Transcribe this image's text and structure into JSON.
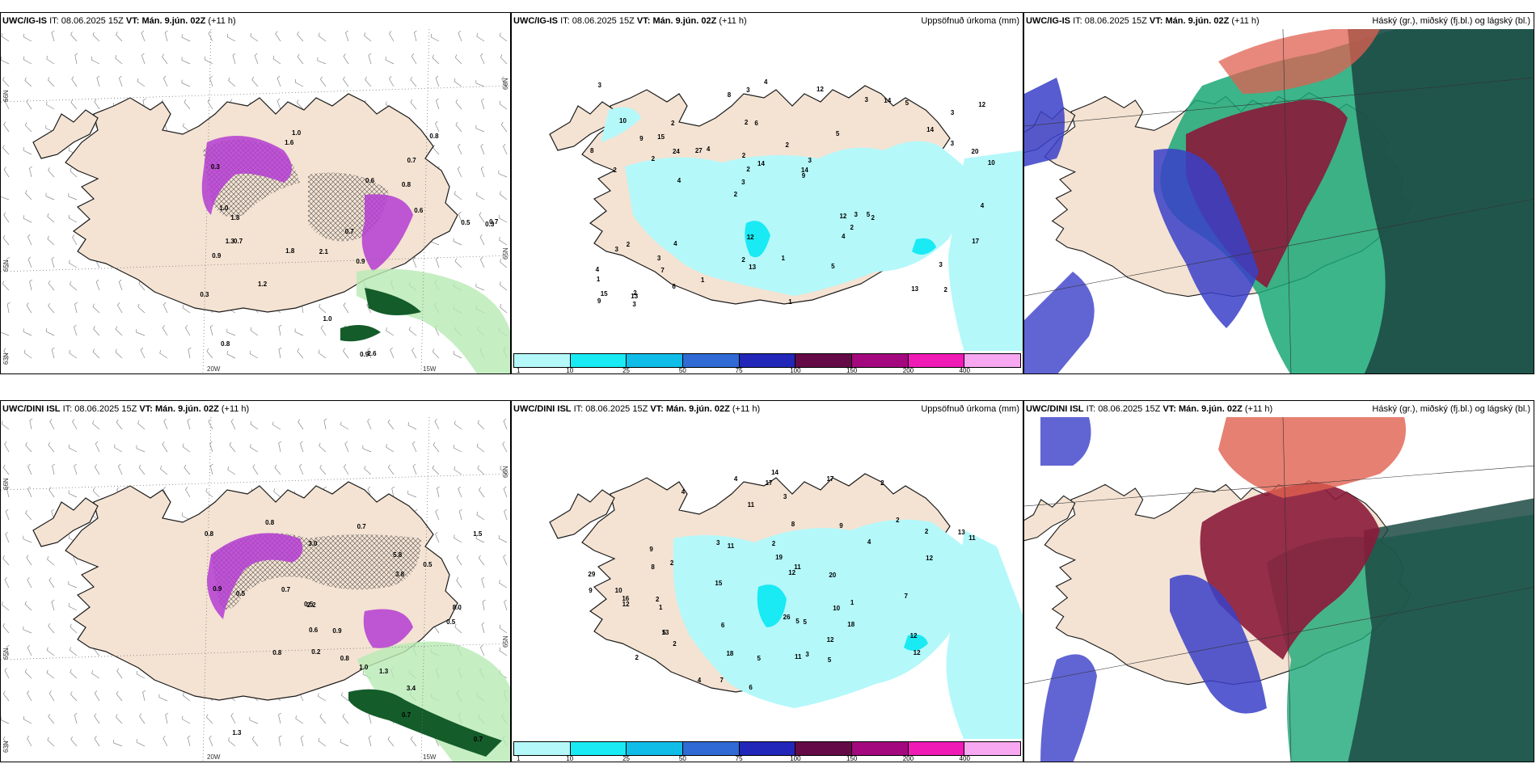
{
  "rows": [
    {
      "model": "UWC/IG-IS",
      "it_label": "IT:",
      "it_value": "08.06.2025 15Z",
      "vt_label": "VT:",
      "vt_value": "Mán. 9.jún. 02Z",
      "lead": "(+11 h)",
      "precip_title": "Uppsöfnuð úrkoma (mm)",
      "cloud_title": "Háský (gr.), miðský (fj.bl.) og lágský (bl.)",
      "wind_labels": [
        "1.0",
        "0.7",
        "0.3",
        "2.1",
        "0.9",
        "0.7",
        "0.3",
        "0.8",
        "0.9",
        "0.6",
        "0.7",
        "0.8",
        "1.6",
        "1.8",
        "0.9",
        "2.6",
        "1.0",
        "0.8",
        "0.6",
        "1.2",
        "1.8",
        "1.3",
        "0.7",
        "0.5",
        "0.3",
        "1.0"
      ],
      "precip_labels": [
        "2",
        "2",
        "3",
        "2",
        "5",
        "2",
        "2",
        "2",
        "2",
        "4",
        "1",
        "7",
        "6",
        "3",
        "2",
        "10",
        "3",
        "10",
        "12",
        "3",
        "3",
        "2",
        "2",
        "2",
        "3",
        "4",
        "13",
        "3",
        "5",
        "1",
        "27",
        "2",
        "4",
        "6",
        "20",
        "14",
        "15",
        "13",
        "9",
        "3",
        "14",
        "12",
        "2",
        "5",
        "3",
        "3",
        "9",
        "1",
        "5",
        "4",
        "4",
        "8",
        "15",
        "14",
        "13",
        "12",
        "8",
        "14",
        "17",
        "12",
        "1",
        "3",
        "24",
        "4",
        "3",
        "9",
        "4",
        "2"
      ]
    },
    {
      "model": "UWC/DINI ISL",
      "it_label": "IT:",
      "it_value": "08.06.2025 15Z",
      "vt_label": "VT:",
      "vt_value": "Mán. 9.jún. 02Z",
      "lead": "(+11 h)",
      "precip_title": "Uppsöfnuð úrkoma (mm)",
      "cloud_title": "Háský (gr.), miðský (fj.bl.) og lágský (bl.)",
      "wind_labels": [
        "0.5",
        "0.9",
        "3.0",
        "0.8",
        "2.2",
        "1.0",
        "0.5",
        "0.2",
        "0.7",
        "0.8",
        "0.5",
        "8.0",
        "1.5",
        "0.9",
        "3.8",
        "0.8",
        "0.6",
        "0.7",
        "1.3",
        "0.5",
        "0.8",
        "0.7",
        "5.8",
        "3.4",
        "1.3",
        "0.7"
      ],
      "precip_labels": [
        "2",
        "2",
        "4",
        "2",
        "5",
        "2",
        "1",
        "5",
        "2",
        "4",
        "10",
        "14",
        "18",
        "12",
        "6",
        "4",
        "12",
        "29",
        "13",
        "7",
        "5",
        "17",
        "11",
        "11",
        "19",
        "18",
        "16",
        "17",
        "8",
        "1",
        "9",
        "2",
        "3",
        "26",
        "12",
        "12",
        "13",
        "20",
        "9",
        "7",
        "11",
        "3",
        "5",
        "2",
        "9",
        "8",
        "10",
        "11",
        "6",
        "12",
        "11",
        "4",
        "2",
        "12",
        "15",
        "5",
        "3"
      ]
    }
  ],
  "lat_labels": [
    "66N",
    "65N",
    "64N",
    "63N"
  ],
  "lon_labels": [
    "20W",
    "15W"
  ],
  "legend": {
    "ticks": [
      "1",
      "10",
      "25",
      "50",
      "75",
      "100",
      "150",
      "200",
      "400"
    ],
    "colors": [
      "#b4f8fa",
      "#1aeaf3",
      "#10bde9",
      "#2f6ad5",
      "#2226b9",
      "#640a46",
      "#a4087e",
      "#f01ab6",
      "#f7a8f0"
    ]
  },
  "colors": {
    "land": "#f4e3d3",
    "coast": "#1a1a1a",
    "precip_light": "#b4f8fa",
    "precip_mid": "#1aeaf3",
    "snow_purple": "#b43cd2",
    "green_light": "#b8eab4",
    "green_dark": "#145c2a",
    "cloud_high": "#8b1a3a",
    "cloud_mid": "#3a3fc8",
    "cloud_low": "#1aa877",
    "cloud_dark": "#1d4a44"
  }
}
